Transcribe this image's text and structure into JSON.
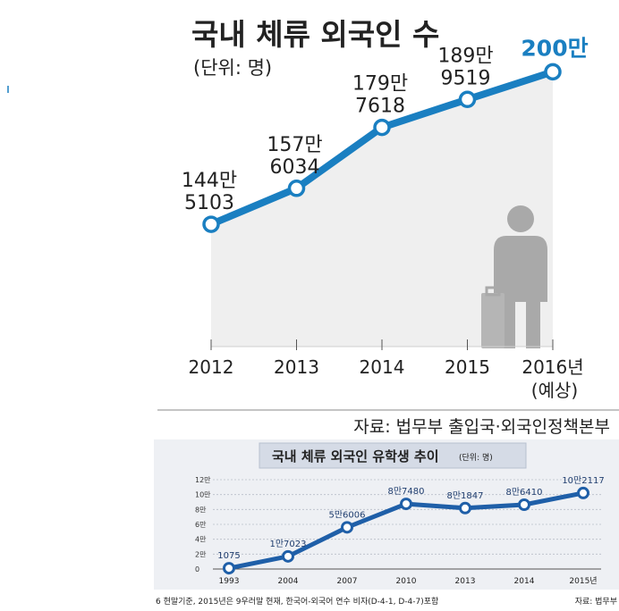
{
  "main_chart": {
    "title": "국내 체류 외국인 수",
    "unit": "(단위: 명)",
    "source": "자료: 법무부 출입국·외국인정책본부",
    "colors": {
      "line": "#1a7fc1",
      "highlight": "#1a7fc1",
      "area": "#efefef",
      "text": "#222222",
      "figure": "#a9a9a9"
    }
  },
  "sub_chart": {
    "title": "국내 체류 외국인 유학생 추이",
    "unit": "(단위: 명)",
    "footnote": "6 현말기준, 2015년은 9우러말 현재, 한국어-외국어 연수 비자(D-4-1, D-4-7)포함",
    "source": "자료: 법무부",
    "colors": {
      "line": "#1f5fa8",
      "panel": "#eef0f4",
      "header": "#d5dbe6"
    }
  },
  "chart_data": [
    {
      "type": "line",
      "title": "국내 체류 외국인 수",
      "categories": [
        "2012",
        "2013",
        "2014",
        "2015",
        "2016년"
      ],
      "category_note": "(예상)",
      "values": [
        1445103,
        1576034,
        1797618,
        1899519,
        2000000
      ],
      "labels": [
        [
          "144만",
          "5103"
        ],
        [
          "157만",
          "6034"
        ],
        [
          "179만",
          "7618"
        ],
        [
          "189만",
          "9519"
        ],
        [
          "200만"
        ]
      ],
      "ylim": [
        1000000,
        2050000
      ]
    },
    {
      "type": "line",
      "title": "국내 체류 외국인 유학생 추이",
      "categories": [
        "1993",
        "2004",
        "2007",
        "2010",
        "2013",
        "2014",
        "2015년"
      ],
      "values": [
        1075,
        17023,
        56006,
        87480,
        81847,
        86410,
        102117
      ],
      "labels": [
        "1075",
        "1만7023",
        "5만6006",
        "8만7480",
        "8만1847",
        "8만6410",
        "10만2117"
      ],
      "yticks": [
        "0",
        "2만",
        "4만",
        "6만",
        "8만",
        "10만",
        "12만"
      ],
      "ytick_values": [
        0,
        20000,
        40000,
        60000,
        80000,
        100000,
        120000
      ],
      "ylim": [
        0,
        120000
      ]
    }
  ]
}
